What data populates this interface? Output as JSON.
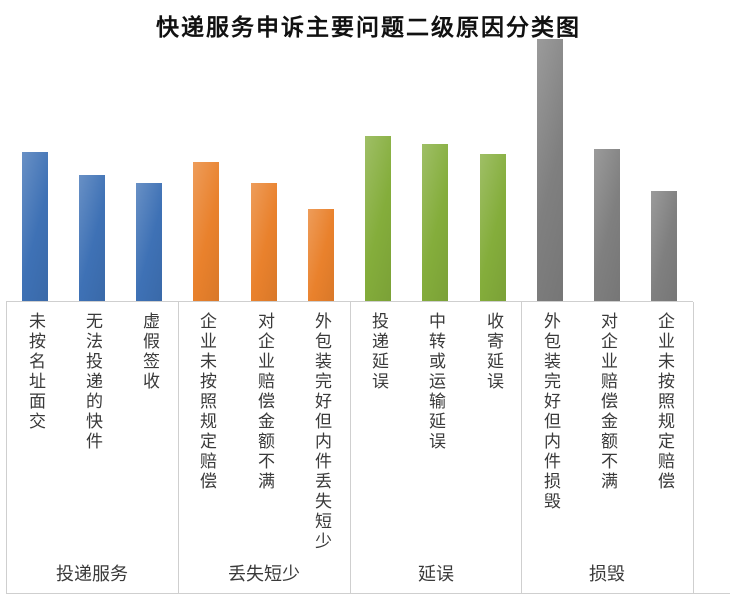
{
  "title": "快递服务申诉主要问题二级原因分类图",
  "chart_data": {
    "type": "bar",
    "title": "快递服务申诉主要问题二级原因分类图",
    "xlabel": "",
    "ylabel": "",
    "value_axis_visible": false,
    "gridlines": false,
    "legend": "none",
    "value_scale": "relative, tallest bar = 100",
    "ylim": [
      0,
      100
    ],
    "groups": [
      {
        "label": "投递服务",
        "color": "#3E71B5",
        "items": [
          {
            "label": "未按名址面交",
            "value": 57
          },
          {
            "label": "无法投递的快件",
            "value": 48
          },
          {
            "label": "虚假签收",
            "value": 45
          }
        ]
      },
      {
        "label": "丢失短少",
        "color": "#E9812C",
        "items": [
          {
            "label": "企业未按照规定赔偿",
            "value": 53
          },
          {
            "label": "对企业赔偿金额不满",
            "value": 45
          },
          {
            "label": "外包装完好但内件丢失短少",
            "value": 35
          }
        ]
      },
      {
        "label": "延误",
        "color": "#84AD3B",
        "items": [
          {
            "label": "投递延误",
            "value": 63
          },
          {
            "label": "中转或运输延误",
            "value": 60
          },
          {
            "label": "收寄延误",
            "value": 56
          }
        ]
      },
      {
        "label": "损毁",
        "color": "#7F7F7F",
        "items": [
          {
            "label": "外包装完好但内件损毁",
            "value": 100
          },
          {
            "label": "对企业赔偿金额不满",
            "value": 58
          },
          {
            "label": "企业未按照规定赔偿",
            "value": 42
          }
        ]
      }
    ]
  }
}
